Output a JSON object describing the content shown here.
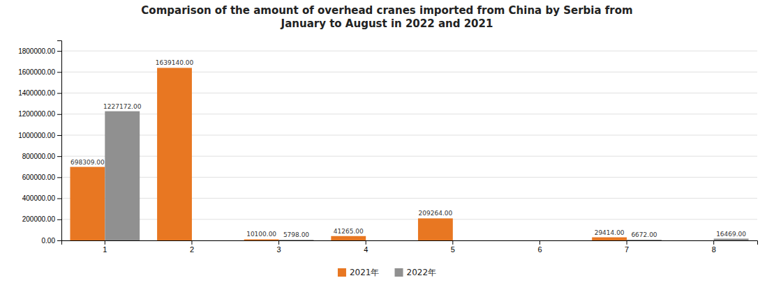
{
  "chart_data": {
    "type": "bar",
    "title": "Comparison of the amount of overhead cranes imported from China by Serbia from\nJanuary to August in 2022 and 2021",
    "categories": [
      1,
      2,
      3,
      4,
      5,
      6,
      7,
      8
    ],
    "series": [
      {
        "name": "2021年",
        "color": "#E87722",
        "values": [
          698309.0,
          1639140.0,
          10100.0,
          41265.0,
          209264.0,
          0.0,
          29414.0,
          0.0
        ],
        "value_labels": [
          "698309.00",
          "1639140.00",
          "10100.00",
          "41265.00",
          "209264.00",
          null,
          "29414.00",
          null
        ]
      },
      {
        "name": "2022年",
        "color": "#909090",
        "values": [
          1227172.0,
          0.0,
          5798.0,
          0.0,
          0.0,
          0.0,
          6672.0,
          16469.0
        ],
        "value_labels": [
          "1227172.00",
          null,
          "5798.00",
          null,
          null,
          null,
          "6672.00",
          "16469.00"
        ]
      }
    ],
    "ylim": [
      0,
      1900000
    ],
    "yticks": [
      {
        "value": 0,
        "label": "0.00"
      },
      {
        "value": 200000,
        "label": "200000.00"
      },
      {
        "value": 400000,
        "label": "400000.00"
      },
      {
        "value": 600000,
        "label": "600000.00"
      },
      {
        "value": 800000,
        "label": "800000.00"
      },
      {
        "value": 1000000,
        "label": "1000000.00"
      },
      {
        "value": 1200000,
        "label": "1200000.00"
      },
      {
        "value": 1400000,
        "label": "1400000.00"
      },
      {
        "value": 1600000,
        "label": "1600000.00"
      },
      {
        "value": 1800000,
        "label": "1800000.00"
      }
    ],
    "grid": true,
    "data_labels": true,
    "legend": "bottom"
  }
}
